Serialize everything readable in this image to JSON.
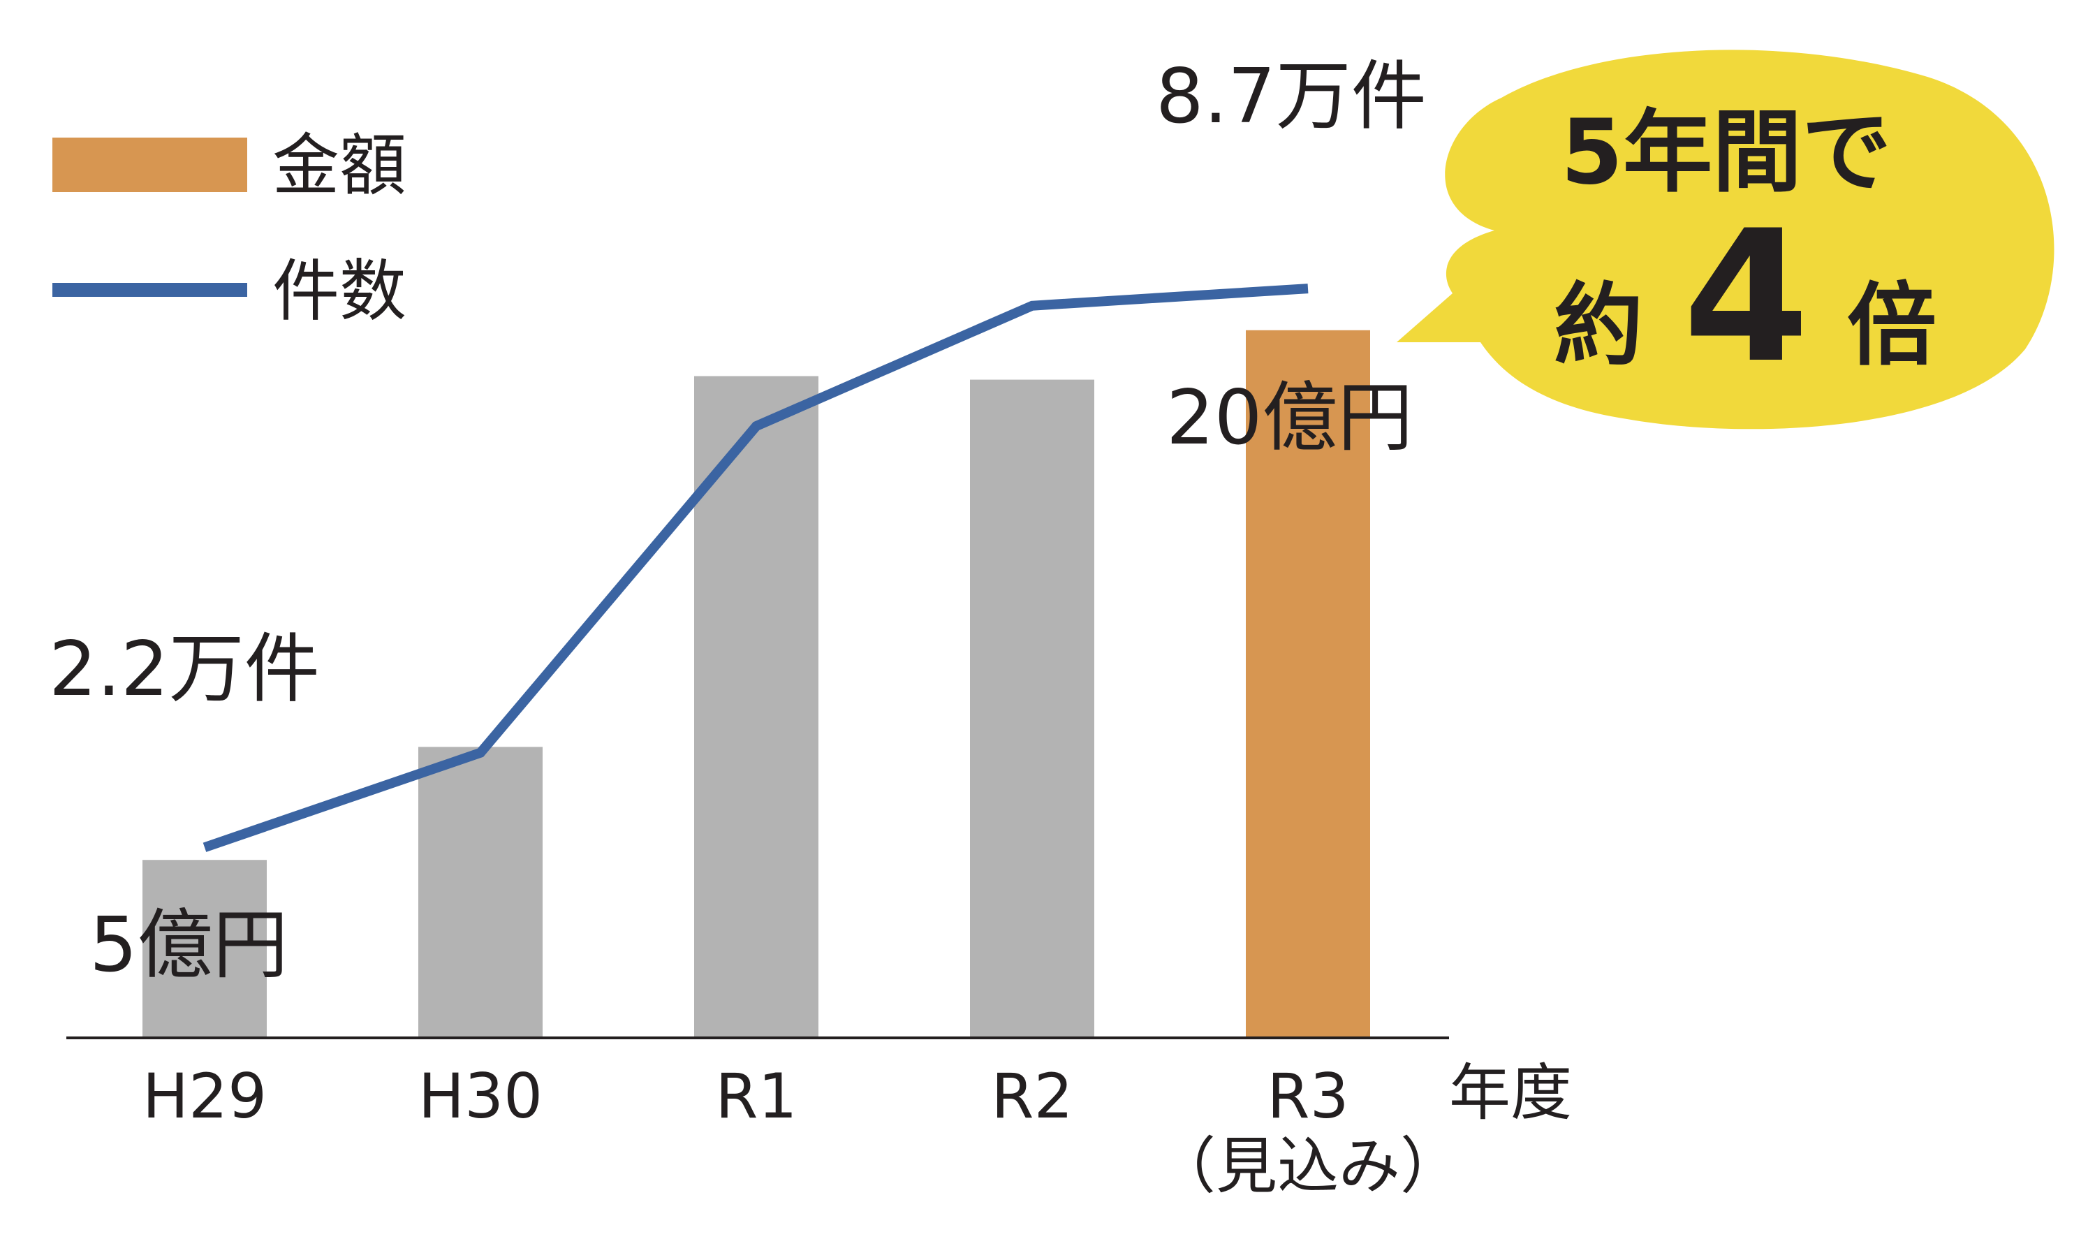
{
  "chart_data": {
    "type": "bar",
    "categories": [
      "H29",
      "H30",
      "R1",
      "R2",
      "R3"
    ],
    "category_notes": [
      "",
      "",
      "",
      "",
      "（見込み）"
    ],
    "x_unit_label": "年度",
    "legend_position": "top-left",
    "grid": false,
    "series": [
      {
        "name": "金額",
        "type": "bar",
        "unit": "億円",
        "values": [
          5,
          8.2,
          18.7,
          18.6,
          20
        ],
        "colors": [
          "#b3b3b3",
          "#b3b3b3",
          "#b3b3b3",
          "#b3b3b3",
          "#d79651"
        ],
        "ylim": [
          0,
          25
        ]
      },
      {
        "name": "件数",
        "type": "line",
        "unit": "万件",
        "values": [
          2.2,
          3.3,
          7.1,
          8.5,
          8.7
        ],
        "color": "#3b64a2",
        "ylim": [
          0,
          11
        ]
      }
    ],
    "annotations": {
      "bar_first": "5億円",
      "bar_last": "20億円",
      "line_first": "2.2万件",
      "line_last": "8.7万件"
    },
    "callout": {
      "line1": "5年間で",
      "prefix": "約",
      "number": "4",
      "suffix": "倍",
      "color": "#f1d93b"
    }
  },
  "legend": {
    "bar_color": "#d79651",
    "line_color": "#3b64a2"
  }
}
